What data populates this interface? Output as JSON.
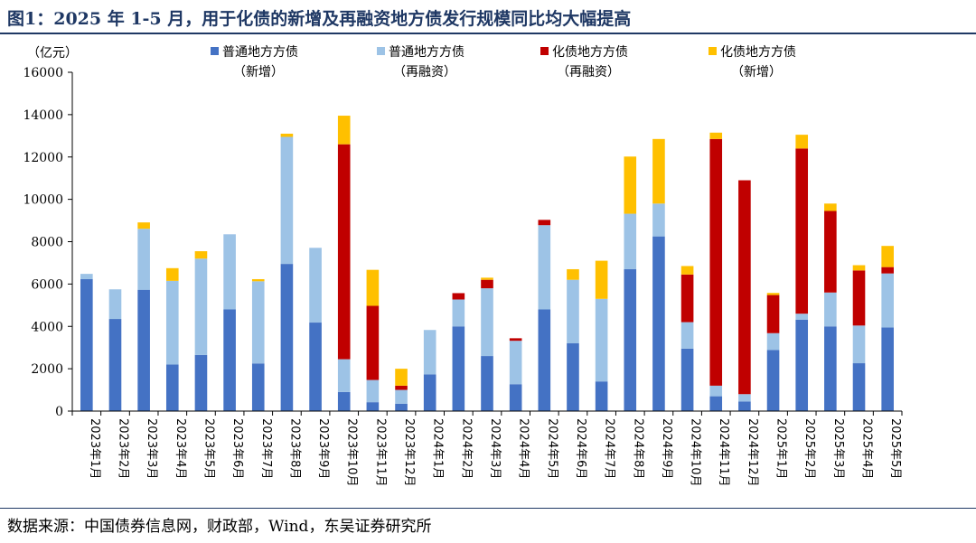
{
  "figure": {
    "title": "图1：2025 年 1-5 月，用于化债的新增及再融资地方债发行规模同比均大幅提高",
    "source": "数据来源：中国债券信息网，财政部，Wind，东吴证券研究所"
  },
  "chart_data": {
    "type": "bar",
    "stacked": true,
    "unit_label": "（亿元）",
    "ylim": [
      0,
      16000
    ],
    "yticks": [
      0,
      2000,
      4000,
      6000,
      8000,
      10000,
      12000,
      14000,
      16000
    ],
    "grid": false,
    "legend_position": "top",
    "categories": [
      "2023年1月",
      "2023年2月",
      "2023年3月",
      "2023年4月",
      "2023年5月",
      "2023年6月",
      "2023年7月",
      "2023年8月",
      "2023年9月",
      "2023年10月",
      "2023年11月",
      "2023年12月",
      "2024年1月",
      "2024年2月",
      "2024年3月",
      "2024年4月",
      "2024年5月",
      "2024年6月",
      "2024年7月",
      "2024年8月",
      "2024年9月",
      "2024年10月",
      "2024年11月",
      "2024年12月",
      "2025年1月",
      "2025年2月",
      "2025年3月",
      "2025年4月",
      "2025年5月"
    ],
    "series": [
      {
        "name": "普通地方方债",
        "name_line2": "（新增）",
        "color": "#4472c4",
        "values": [
          6230,
          4350,
          5730,
          2200,
          2650,
          4800,
          2250,
          6950,
          4180,
          900,
          420,
          350,
          1730,
          4000,
          2600,
          1270,
          4800,
          3200,
          1400,
          6700,
          8250,
          2950,
          700,
          450,
          2880,
          4320,
          4000,
          2260,
          3950
        ]
      },
      {
        "name": "普通地方方债",
        "name_line2": "（再融资）",
        "color": "#9dc3e6",
        "values": [
          250,
          1400,
          2880,
          3950,
          4550,
          3550,
          3880,
          6000,
          3530,
          1550,
          1050,
          650,
          2100,
          1270,
          3200,
          2050,
          3980,
          3000,
          3900,
          2620,
          1550,
          1250,
          500,
          350,
          800,
          280,
          1600,
          1780,
          2550
        ]
      },
      {
        "name": "化债地方方债",
        "name_line2": "（再融资）",
        "color": "#c00000",
        "values": [
          0,
          0,
          0,
          0,
          0,
          0,
          0,
          0,
          0,
          10150,
          3500,
          200,
          0,
          300,
          400,
          120,
          250,
          0,
          0,
          0,
          0,
          2250,
          11650,
          10100,
          1800,
          7800,
          3850,
          2600,
          300
        ]
      },
      {
        "name": "化债地方方债",
        "name_line2": "（新增）",
        "color": "#ffc000",
        "values": [
          0,
          0,
          300,
          600,
          350,
          0,
          100,
          150,
          0,
          1350,
          1700,
          800,
          0,
          0,
          100,
          0,
          0,
          500,
          1800,
          2700,
          3050,
          400,
          300,
          0,
          100,
          650,
          350,
          250,
          1000
        ]
      }
    ]
  }
}
